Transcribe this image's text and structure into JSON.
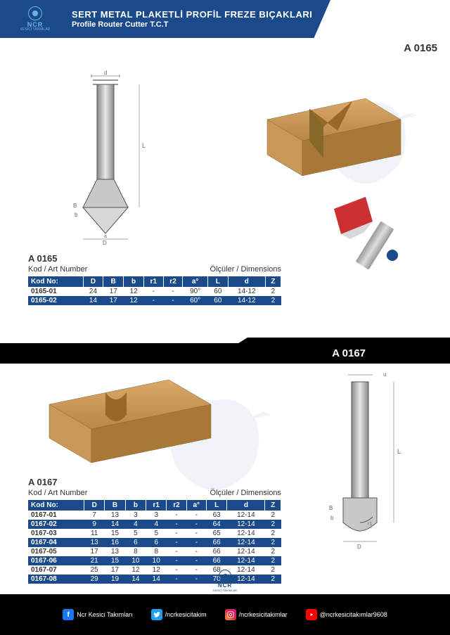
{
  "header": {
    "title_tr": "SERT METAL PLAKETLİ PROFİL FREZE BIÇAKLARI",
    "title_en": "Profile Router Cutter T.C.T",
    "brand": "NCR",
    "brand_sub": "KESİCİ TAKIMLAR"
  },
  "codes": {
    "c1": "A 0165",
    "c2": "A 0167"
  },
  "labels": {
    "kod": "Kod / Art Number",
    "olcu": "Ölçüler / Dimensions"
  },
  "table1": {
    "title": "A 0165",
    "columns": [
      "Kod No:",
      "D",
      "B",
      "b",
      "r1",
      "r2",
      "a°",
      "L",
      "d",
      "Z"
    ],
    "rows": [
      [
        "0165-01",
        "24",
        "17",
        "12",
        "-",
        "-",
        "90°",
        "60",
        "14-12",
        "2"
      ],
      [
        "0165-02",
        "14",
        "17",
        "12",
        "-",
        "-",
        "60°",
        "60",
        "14-12",
        "2"
      ]
    ]
  },
  "table2": {
    "title": "A 0167",
    "columns": [
      "Kod No:",
      "D",
      "B",
      "b",
      "r1",
      "r2",
      "a°",
      "L",
      "d",
      "Z"
    ],
    "rows": [
      [
        "0167-01",
        "7",
        "13",
        "3",
        "3",
        "-",
        "-",
        "63",
        "12-14",
        "2"
      ],
      [
        "0167-02",
        "9",
        "14",
        "4",
        "4",
        "-",
        "-",
        "64",
        "12-14",
        "2"
      ],
      [
        "0167-03",
        "11",
        "15",
        "5",
        "5",
        "-",
        "-",
        "65",
        "12-14",
        "2"
      ],
      [
        "0167-04",
        "13",
        "16",
        "6",
        "6",
        "-",
        "-",
        "66",
        "12-14",
        "2"
      ],
      [
        "0167-05",
        "17",
        "13",
        "8",
        "8",
        "-",
        "-",
        "66",
        "12-14",
        "2"
      ],
      [
        "0167-06",
        "21",
        "15",
        "10",
        "10",
        "-",
        "-",
        "66",
        "12-14",
        "2"
      ],
      [
        "0167-07",
        "25",
        "17",
        "12",
        "12",
        "-",
        "-",
        "68",
        "12-14",
        "2"
      ],
      [
        "0167-08",
        "29",
        "19",
        "14",
        "14",
        "-",
        "-",
        "70",
        "12-14",
        "2"
      ]
    ]
  },
  "social": {
    "fb": "Ncr Kesici Takımları",
    "tw": "/ncrkesicitakim",
    "ig": "/ncrkesicitakimlar",
    "yt": "@ncrkesicitakımlar9608"
  },
  "colors": {
    "blue": "#1a4a8a",
    "black": "#000",
    "wood": "#c8a060",
    "metal": "#b8b8b8",
    "red": "#cc3030"
  }
}
